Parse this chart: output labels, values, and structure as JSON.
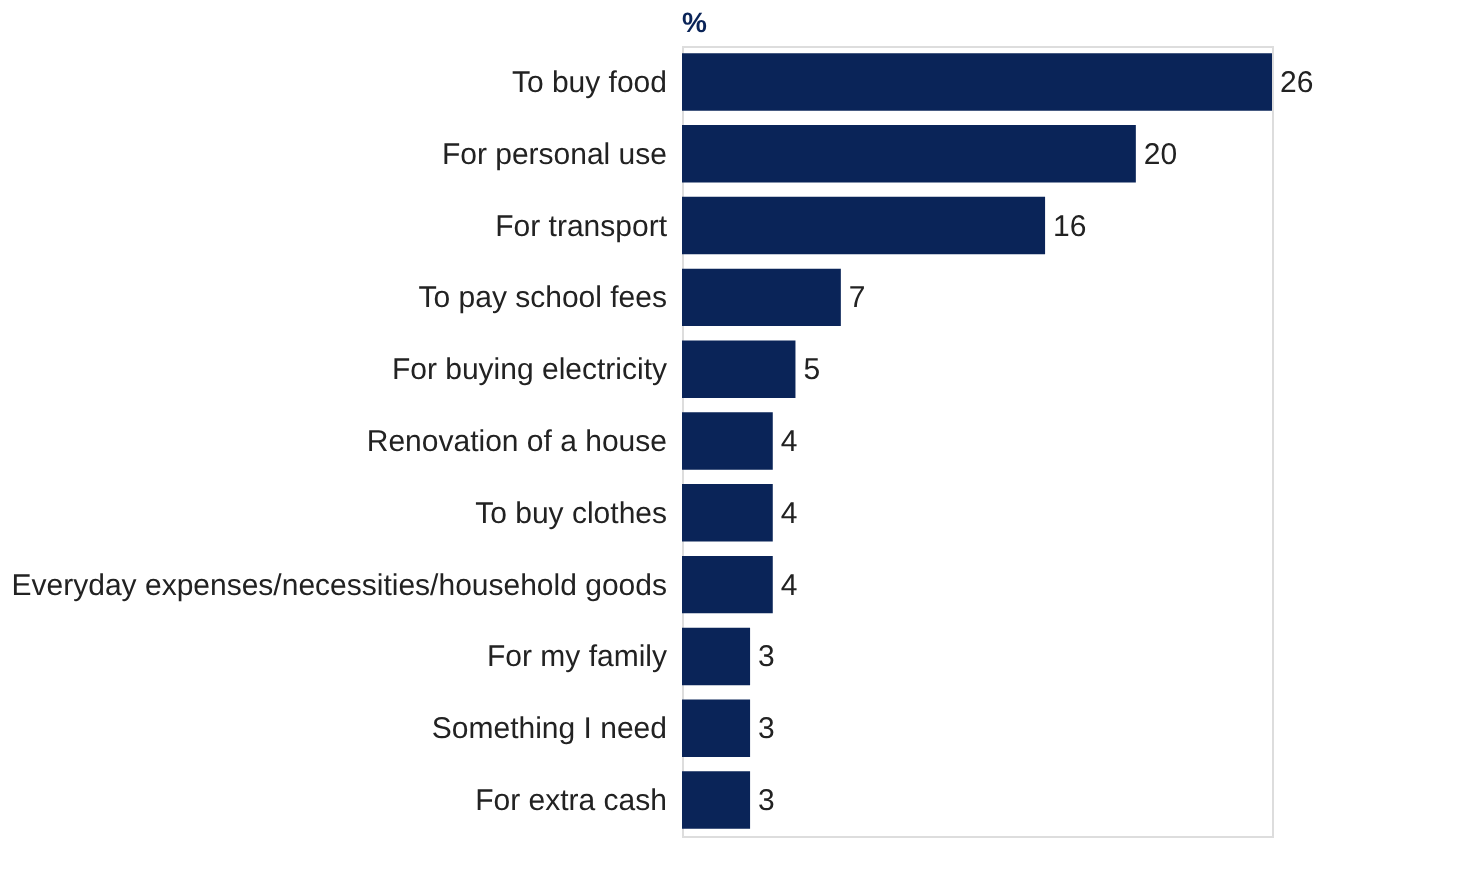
{
  "chart_data": {
    "type": "bar",
    "orientation": "horizontal",
    "title": "%",
    "categories": [
      "To buy food",
      "For personal use",
      "For transport",
      "To pay school fees",
      "For buying electricity",
      "Renovation of a house",
      "To buy clothes",
      "Everyday expenses/necessities/household goods",
      "For my family",
      "Something I need",
      "For extra cash"
    ],
    "values": [
      26,
      20,
      16,
      7,
      5,
      4,
      4,
      4,
      3,
      3,
      3
    ],
    "color": "#0a2458",
    "data_labels": true
  }
}
